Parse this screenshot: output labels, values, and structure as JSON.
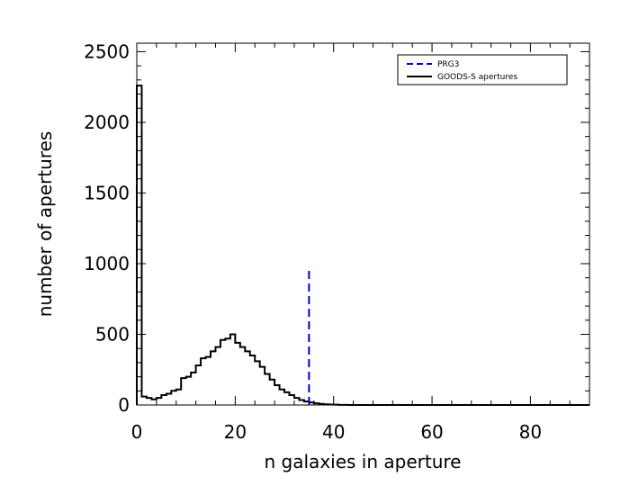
{
  "chart_data": {
    "type": "line",
    "title": "",
    "xlabel": "n galaxies in aperture",
    "ylabel": "number of apertures",
    "xlim": [
      0,
      92
    ],
    "ylim": [
      0,
      2560
    ],
    "x_ticks": [
      0,
      20,
      40,
      60,
      80
    ],
    "y_ticks": [
      0,
      500,
      1000,
      1500,
      2000,
      2500
    ],
    "grid": false,
    "legend_position": "top-right",
    "series": [
      {
        "name": "GOODS-S apertures",
        "style": "histogram-step",
        "color": "#000000",
        "bin_width": 1,
        "bin_start": 0,
        "values": [
          2260,
          60,
          50,
          40,
          50,
          70,
          80,
          100,
          110,
          190,
          200,
          230,
          280,
          330,
          340,
          380,
          410,
          460,
          470,
          500,
          440,
          410,
          380,
          350,
          310,
          270,
          220,
          180,
          140,
          110,
          90,
          70,
          50,
          35,
          25,
          18,
          12,
          8,
          5,
          3,
          2,
          1,
          1,
          0
        ]
      },
      {
        "name": "PRG3",
        "style": "dashed-vertical",
        "color": "#0000cc",
        "x": 35,
        "y_range": [
          0,
          960
        ]
      }
    ]
  }
}
